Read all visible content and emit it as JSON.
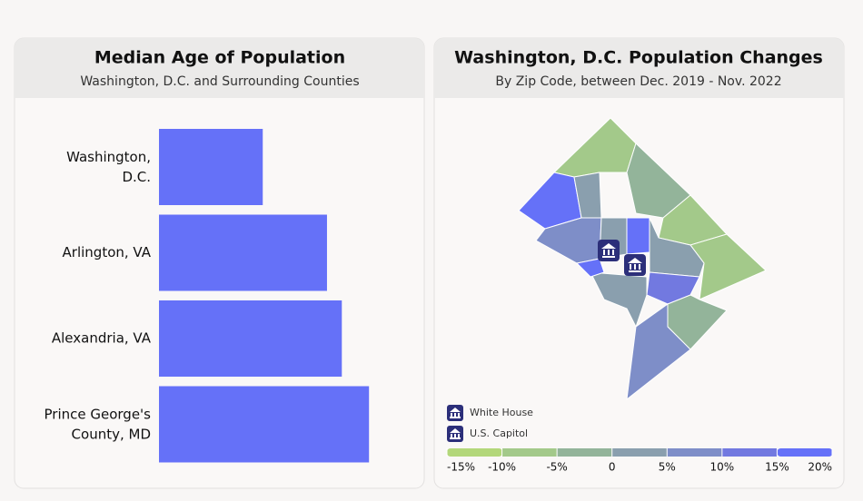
{
  "chart_data": [
    {
      "type": "hbar",
      "title": "Median Age of Population",
      "subtitle": "Washington, D.C. and Surrounding Counties",
      "categories": [
        "Washington,\nD.C.",
        "Arlington, VA",
        "Alexandria, VA",
        "Prince George's\nCounty, MD"
      ],
      "values": [
        34.2,
        36.8,
        37.4,
        38.5
      ],
      "color": "#6571f8",
      "xlim": [
        30,
        40
      ]
    },
    {
      "type": "map",
      "title": "Washington, D.C. Population Changes",
      "subtitle": "By Zip Code, between Dec. 2019 - Nov. 2022",
      "legend": [
        "White House",
        "U.S. Capitol"
      ],
      "colors": [
        "#b3d77a",
        "#a3c98a",
        "#93b49a",
        "#8a9fae",
        "#7e8ec8",
        "#7279e0",
        "#6571f8"
      ],
      "xlim": [
        -15,
        20
      ],
      "xticks": [
        {
          "value": -15,
          "label": "-15%"
        },
        {
          "value": -10,
          "label": "-10%"
        },
        {
          "value": -5,
          "label": "-5%"
        },
        0,
        {
          "value": 5,
          "label": "5%"
        },
        {
          "value": 10,
          "label": "10%"
        },
        {
          "value": 15,
          "label": "15%"
        },
        {
          "value": 20,
          "label": "20%"
        }
      ]
    }
  ]
}
